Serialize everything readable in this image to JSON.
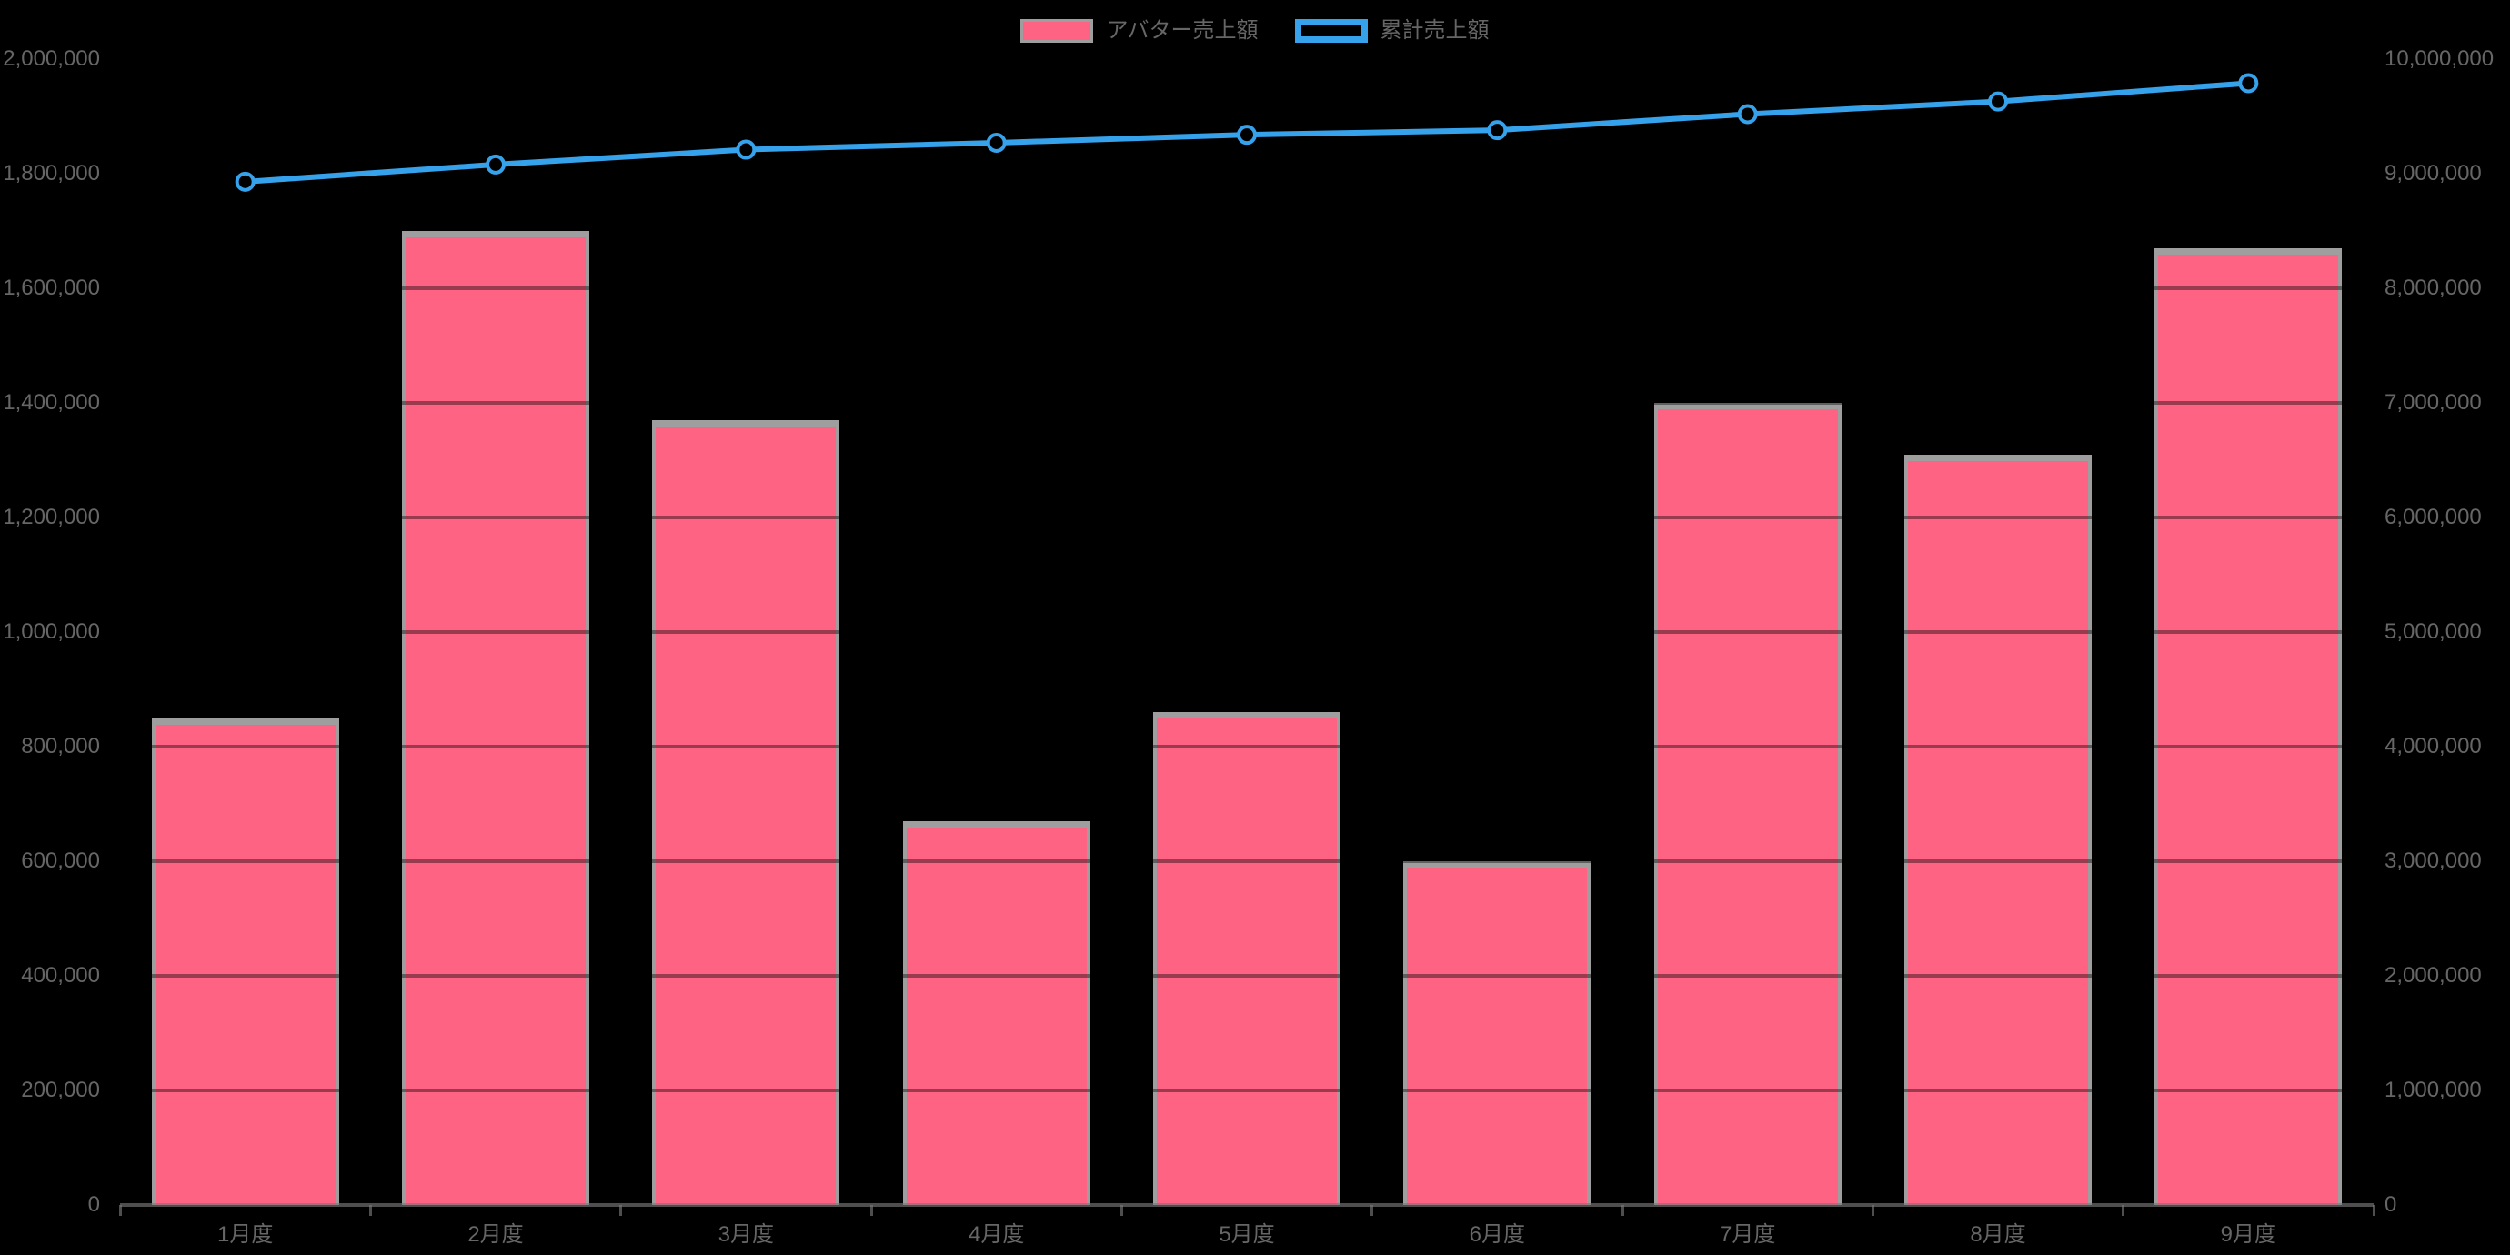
{
  "legend": {
    "bar_label": "アバター売上額",
    "line_label": "累計売上額"
  },
  "colors": {
    "background": "#000000",
    "bar_fill": "#FF6384",
    "bar_border": "#9E9E9E",
    "line": "#36A2EB",
    "text": "#666666",
    "grid": "rgba(0,0,0,0.40)",
    "axis": "rgba(120,120,120,0.65)"
  },
  "chart_data": {
    "type": "bar",
    "subtype": "combo-bar-line-dual-axis",
    "title": "",
    "xlabel": "",
    "ylabel_left": "",
    "ylabel_right": "",
    "grid": true,
    "legend_position": "top-center",
    "categories": [
      "1月度",
      "2月度",
      "3月度",
      "4月度",
      "5月度",
      "6月度",
      "7月度",
      "8月度",
      "9月度"
    ],
    "series": [
      {
        "name": "アバター売上額",
        "type": "bar",
        "axis": "left",
        "values": [
          850000,
          1700000,
          1370000,
          670000,
          860000,
          600000,
          1400000,
          1310000,
          1670000
        ]
      },
      {
        "name": "累計売上額",
        "type": "line",
        "axis": "right",
        "marker": "open-circle",
        "values": [
          8930000,
          9080000,
          9210000,
          9270000,
          9340000,
          9380000,
          9520000,
          9630000,
          9790000
        ]
      }
    ],
    "left_axis": {
      "min": 0,
      "max": 2000000,
      "step": 200000,
      "tick_labels_top_to_bottom": [
        "2,000,000",
        "1,800,000",
        "1,600,000",
        "1,400,000",
        "1,200,000",
        "1,000,000",
        "800,000",
        "600,000",
        "400,000",
        "200,000",
        "0"
      ]
    },
    "right_axis": {
      "min": 0,
      "max": 10000000,
      "step": 1000000,
      "tick_labels_top_to_bottom": [
        "10,000,000",
        "9,000,000",
        "8,000,000",
        "7,000,000",
        "6,000,000",
        "5,000,000",
        "4,000,000",
        "3,000,000",
        "2,000,000",
        "1,000,000",
        "0"
      ]
    }
  }
}
